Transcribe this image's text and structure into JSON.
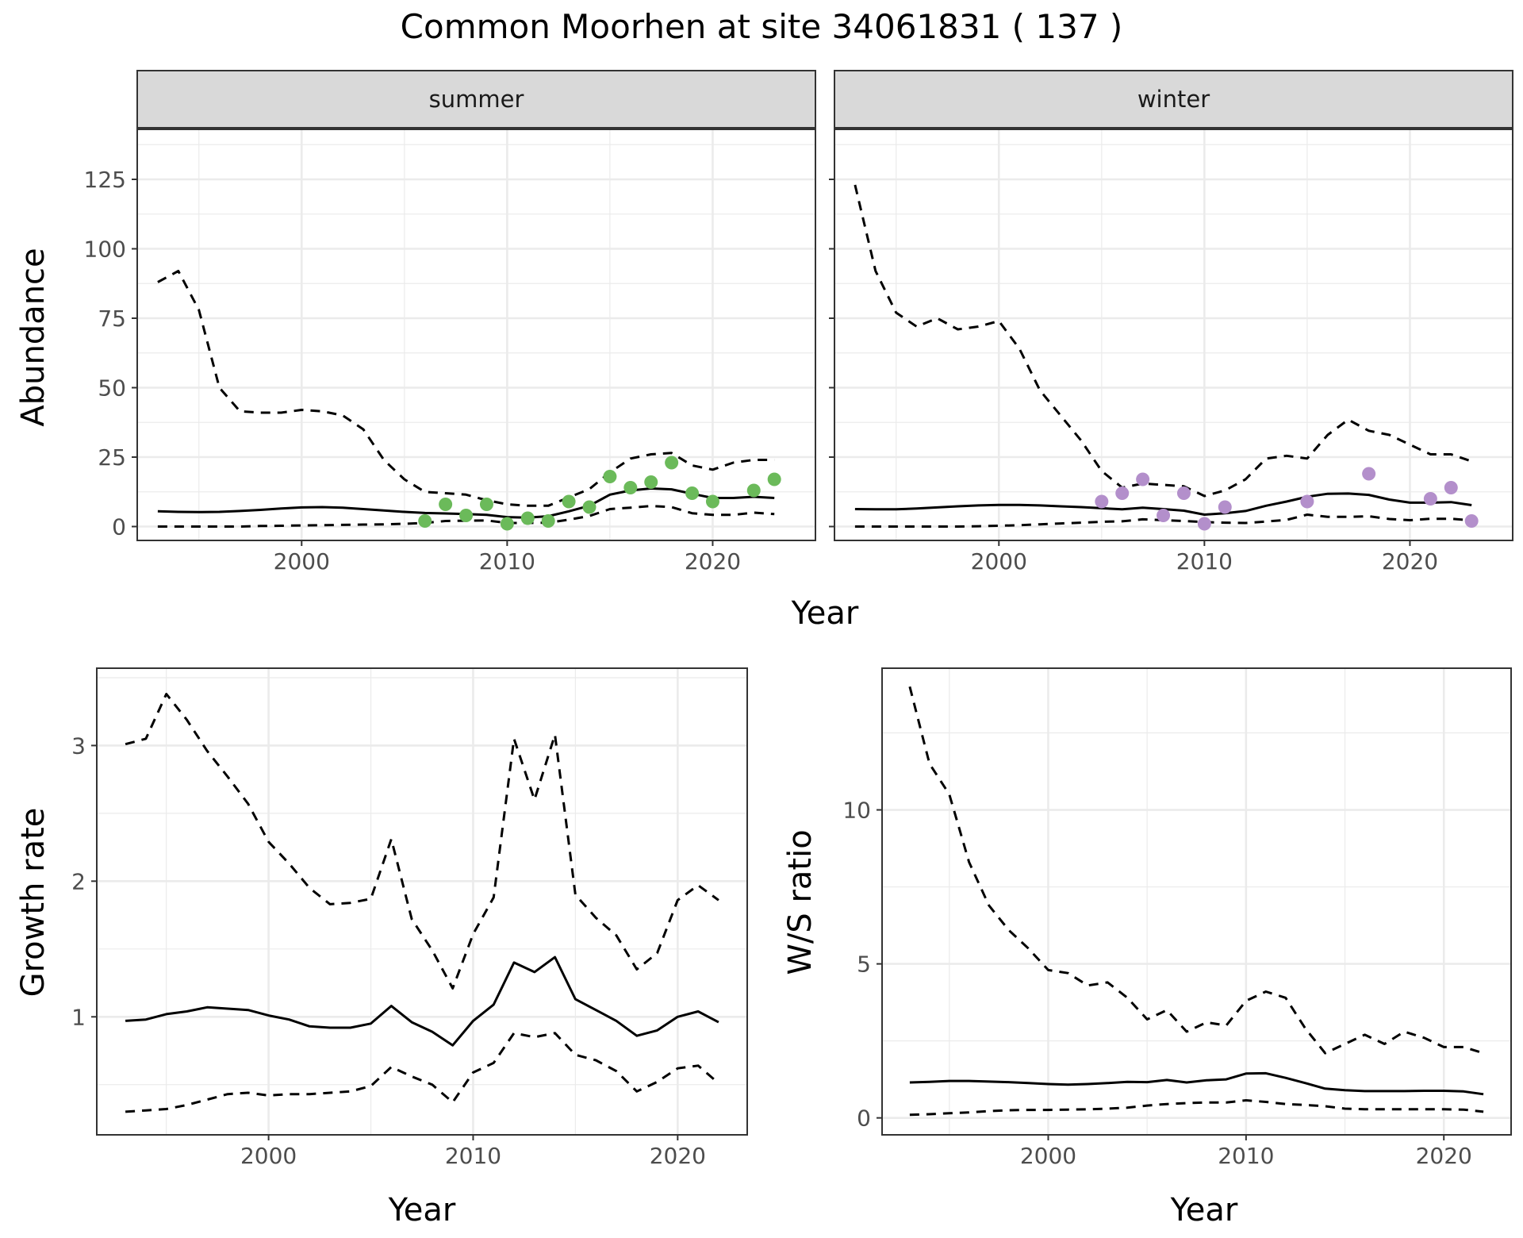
{
  "title": "Common Moorhen at site 34061831 ( 137 )",
  "colors": {
    "summer_points": "#6bba5a",
    "winter_points": "#b38fcb",
    "line": "#000000",
    "strip_fill": "#d9d9d9",
    "grid": "#ebebeb"
  },
  "chart_data": [
    {
      "type": "line",
      "panel": "summer",
      "strip_label": "summer",
      "xlabel": "Year",
      "ylabel": "Abundance",
      "xlim": [
        1992,
        2025
      ],
      "ylim": [
        -5,
        143
      ],
      "x_ticks": [
        2000,
        2010,
        2020
      ],
      "y_ticks": [
        0,
        25,
        50,
        75,
        100,
        125
      ],
      "grid": true,
      "series": [
        {
          "style": "solid",
          "x": [
            1993,
            1994,
            1995,
            1996,
            1997,
            1998,
            1999,
            2000,
            2001,
            2002,
            2003,
            2004,
            2005,
            2006,
            2007,
            2008,
            2009,
            2010,
            2011,
            2012,
            2013,
            2014,
            2015,
            2016,
            2017,
            2018,
            2019,
            2020,
            2021,
            2022,
            2023
          ],
          "y": [
            5.5,
            5.3,
            5.2,
            5.3,
            5.6,
            6.0,
            6.5,
            6.9,
            7.0,
            6.8,
            6.3,
            5.8,
            5.3,
            4.9,
            4.7,
            4.5,
            4.2,
            3.4,
            3.2,
            3.7,
            5.5,
            7.5,
            11.5,
            13.0,
            13.7,
            13.4,
            11.8,
            10.3,
            10.3,
            10.7,
            10.3
          ]
        },
        {
          "style": "dashed",
          "x": [
            1993,
            1994,
            1995,
            1996,
            1997,
            1998,
            1999,
            2000,
            2001,
            2002,
            2003,
            2004,
            2005,
            2006,
            2007,
            2008,
            2009,
            2010,
            2011,
            2012,
            2013,
            2014,
            2015,
            2016,
            2017,
            2018,
            2019,
            2020,
            2021,
            2022,
            2023
          ],
          "y": [
            88,
            92,
            78,
            50,
            41.5,
            41,
            41,
            42,
            41.5,
            40,
            35,
            24,
            17,
            12.5,
            12,
            11.5,
            9.5,
            8,
            7.5,
            7.5,
            10.5,
            13.5,
            19.5,
            24.5,
            26,
            26.5,
            22,
            20.5,
            23,
            24,
            24
          ]
        },
        {
          "style": "dashed",
          "x": [
            1993,
            1994,
            1995,
            1996,
            1997,
            1998,
            1999,
            2000,
            2001,
            2002,
            2003,
            2004,
            2005,
            2006,
            2007,
            2008,
            2009,
            2010,
            2011,
            2012,
            2013,
            2014,
            2015,
            2016,
            2017,
            2018,
            2019,
            2020,
            2021,
            2022,
            2023
          ],
          "y": [
            0,
            0,
            0,
            0,
            0,
            0.2,
            0.3,
            0.4,
            0.5,
            0.6,
            0.7,
            0.8,
            1.0,
            1.3,
            2.0,
            2.1,
            2.2,
            1.3,
            1.3,
            1.4,
            2.5,
            3.8,
            6.3,
            6.8,
            7.4,
            7.0,
            4.8,
            4.2,
            4.2,
            5.0,
            4.5
          ]
        }
      ],
      "points": {
        "x": [
          2006,
          2007,
          2008,
          2009,
          2010,
          2011,
          2012,
          2013,
          2014,
          2015,
          2016,
          2017,
          2018,
          2019,
          2020,
          2022,
          2023
        ],
        "y": [
          2,
          8,
          4,
          8,
          1,
          3,
          2,
          9,
          7,
          18,
          14,
          16,
          23,
          12,
          9,
          13,
          17
        ]
      }
    },
    {
      "type": "line",
      "panel": "winter",
      "strip_label": "winter",
      "xlabel": "Year",
      "ylabel": "Abundance",
      "xlim": [
        1992,
        2025
      ],
      "ylim": [
        -5,
        143
      ],
      "x_ticks": [
        2000,
        2010,
        2020
      ],
      "y_ticks": [
        0,
        25,
        50,
        75,
        100,
        125
      ],
      "grid": true,
      "series": [
        {
          "style": "solid",
          "x": [
            1993,
            1994,
            1995,
            1996,
            1997,
            1998,
            1999,
            2000,
            2001,
            2002,
            2003,
            2004,
            2005,
            2006,
            2007,
            2008,
            2009,
            2010,
            2011,
            2012,
            2013,
            2014,
            2015,
            2016,
            2017,
            2018,
            2019,
            2020,
            2021,
            2022,
            2023
          ],
          "y": [
            6.3,
            6.2,
            6.2,
            6.5,
            6.9,
            7.3,
            7.6,
            7.8,
            7.8,
            7.6,
            7.3,
            7.0,
            6.6,
            6.2,
            6.8,
            6.3,
            5.7,
            4.3,
            4.8,
            5.6,
            7.5,
            9.0,
            10.7,
            11.8,
            11.9,
            11.4,
            9.7,
            8.6,
            8.6,
            8.8,
            7.7
          ]
        },
        {
          "style": "dashed",
          "x": [
            1993,
            1994,
            1995,
            1996,
            1997,
            1998,
            1999,
            2000,
            2001,
            2002,
            2003,
            2004,
            2005,
            2006,
            2007,
            2008,
            2009,
            2010,
            2011,
            2012,
            2013,
            2014,
            2015,
            2016,
            2017,
            2018,
            2019,
            2020,
            2021,
            2022,
            2023
          ],
          "y": [
            123,
            92,
            77,
            72,
            75,
            71,
            72,
            74,
            64,
            49,
            40,
            31,
            20,
            14,
            15.5,
            15,
            14.5,
            11,
            13,
            17,
            24.5,
            25.5,
            24.5,
            33,
            38.5,
            34.5,
            33,
            29.5,
            26,
            26,
            23.5
          ]
        },
        {
          "style": "dashed",
          "x": [
            1993,
            1994,
            1995,
            1996,
            1997,
            1998,
            1999,
            2000,
            2001,
            2002,
            2003,
            2004,
            2005,
            2006,
            2007,
            2008,
            2009,
            2010,
            2011,
            2012,
            2013,
            2014,
            2015,
            2016,
            2017,
            2018,
            2019,
            2020,
            2021,
            2022,
            2023
          ],
          "y": [
            0,
            0,
            0,
            0,
            0,
            0,
            0.1,
            0.3,
            0.5,
            0.8,
            1.1,
            1.4,
            1.7,
            1.9,
            2.6,
            2.3,
            2.0,
            1.6,
            1.4,
            1.3,
            1.8,
            2.4,
            4.3,
            3.5,
            3.5,
            3.7,
            2.7,
            2.3,
            2.8,
            2.8,
            2.2
          ]
        }
      ],
      "points": {
        "x": [
          2005,
          2006,
          2007,
          2008,
          2009,
          2010,
          2011,
          2015,
          2018,
          2021,
          2022,
          2023
        ],
        "y": [
          9,
          12,
          17,
          4,
          12,
          1,
          7,
          9,
          19,
          10,
          14,
          2
        ]
      }
    },
    {
      "type": "line",
      "panel": "growth",
      "xlabel": "Year",
      "ylabel": "Growth rate",
      "xlim": [
        1991.6,
        2023.4
      ],
      "ylim": [
        0.13,
        3.57
      ],
      "x_ticks": [
        2000,
        2010,
        2020
      ],
      "y_ticks": [
        1,
        2,
        3
      ],
      "grid": true,
      "series": [
        {
          "style": "solid",
          "x": [
            1993,
            1994,
            1995,
            1996,
            1997,
            1998,
            1999,
            2000,
            2001,
            2002,
            2003,
            2004,
            2005,
            2006,
            2007,
            2008,
            2009,
            2010,
            2011,
            2012,
            2013,
            2014,
            2015,
            2016,
            2017,
            2018,
            2019,
            2020,
            2021,
            2022
          ],
          "y": [
            0.97,
            0.98,
            1.02,
            1.04,
            1.07,
            1.06,
            1.05,
            1.01,
            0.98,
            0.93,
            0.92,
            0.92,
            0.95,
            1.08,
            0.96,
            0.89,
            0.79,
            0.97,
            1.09,
            1.4,
            1.33,
            1.44,
            1.13,
            1.05,
            0.97,
            0.86,
            0.9,
            1.0,
            1.04,
            0.96
          ]
        },
        {
          "style": "dashed",
          "x": [
            1993,
            1994,
            1995,
            1996,
            1997,
            1998,
            1999,
            2000,
            2001,
            2002,
            2003,
            2004,
            2005,
            2006,
            2007,
            2008,
            2009,
            2010,
            2011,
            2012,
            2013,
            2014,
            2015,
            2016,
            2017,
            2018,
            2019,
            2020,
            2021,
            2022
          ],
          "y": [
            3.01,
            3.05,
            3.38,
            3.19,
            2.96,
            2.77,
            2.57,
            2.29,
            2.13,
            1.95,
            1.83,
            1.84,
            1.87,
            2.31,
            1.72,
            1.49,
            1.21,
            1.61,
            1.88,
            3.05,
            2.6,
            3.08,
            1.9,
            1.73,
            1.6,
            1.35,
            1.47,
            1.86,
            1.97,
            1.86
          ]
        },
        {
          "style": "dashed",
          "x": [
            1993,
            1994,
            1995,
            1996,
            1997,
            1998,
            1999,
            2000,
            2001,
            2002,
            2003,
            2004,
            2005,
            2006,
            2007,
            2008,
            2009,
            2010,
            2011,
            2012,
            2013,
            2014,
            2015,
            2016,
            2017,
            2018,
            2019,
            2020,
            2021,
            2022
          ],
          "y": [
            0.3,
            0.31,
            0.32,
            0.35,
            0.39,
            0.43,
            0.44,
            0.42,
            0.43,
            0.43,
            0.44,
            0.45,
            0.49,
            0.63,
            0.56,
            0.5,
            0.37,
            0.59,
            0.66,
            0.88,
            0.85,
            0.88,
            0.72,
            0.68,
            0.6,
            0.45,
            0.52,
            0.62,
            0.64,
            0.51
          ]
        }
      ]
    },
    {
      "type": "line",
      "panel": "ratio",
      "xlabel": "Year",
      "ylabel": "W/S ratio",
      "xlim": [
        1991.6,
        2023.4
      ],
      "ylim": [
        -0.55,
        14.6
      ],
      "x_ticks": [
        2000,
        2010,
        2020
      ],
      "y_ticks": [
        0,
        5,
        10
      ],
      "grid": true,
      "series": [
        {
          "style": "solid",
          "x": [
            1993,
            1994,
            1995,
            1996,
            1997,
            1998,
            1999,
            2000,
            2001,
            2002,
            2003,
            2004,
            2005,
            2006,
            2007,
            2008,
            2009,
            2010,
            2011,
            2012,
            2013,
            2014,
            2015,
            2016,
            2017,
            2018,
            2019,
            2020,
            2021,
            2022
          ],
          "y": [
            1.15,
            1.17,
            1.2,
            1.2,
            1.18,
            1.16,
            1.13,
            1.1,
            1.08,
            1.1,
            1.13,
            1.17,
            1.16,
            1.23,
            1.15,
            1.22,
            1.25,
            1.44,
            1.45,
            1.3,
            1.13,
            0.95,
            0.9,
            0.87,
            0.87,
            0.87,
            0.88,
            0.88,
            0.86,
            0.77
          ]
        },
        {
          "style": "dashed",
          "x": [
            1993,
            1994,
            1995,
            1996,
            1997,
            1998,
            1999,
            2000,
            2001,
            2002,
            2003,
            2004,
            2005,
            2006,
            2007,
            2008,
            2009,
            2010,
            2011,
            2012,
            2013,
            2014,
            2015,
            2016,
            2017,
            2018,
            2019,
            2020,
            2021,
            2022
          ],
          "y": [
            14.0,
            11.5,
            10.5,
            8.3,
            6.9,
            6.1,
            5.5,
            4.8,
            4.7,
            4.3,
            4.4,
            3.9,
            3.2,
            3.5,
            2.8,
            3.1,
            3.0,
            3.8,
            4.1,
            3.9,
            2.9,
            2.1,
            2.4,
            2.7,
            2.4,
            2.8,
            2.6,
            2.3,
            2.3,
            2.1
          ]
        },
        {
          "style": "dashed",
          "x": [
            1993,
            1994,
            1995,
            1996,
            1997,
            1998,
            1999,
            2000,
            2001,
            2002,
            2003,
            2004,
            2005,
            2006,
            2007,
            2008,
            2009,
            2010,
            2011,
            2012,
            2013,
            2014,
            2015,
            2016,
            2017,
            2018,
            2019,
            2020,
            2021,
            2022
          ],
          "y": [
            0.1,
            0.12,
            0.15,
            0.18,
            0.22,
            0.25,
            0.26,
            0.26,
            0.27,
            0.28,
            0.3,
            0.33,
            0.4,
            0.45,
            0.48,
            0.5,
            0.5,
            0.57,
            0.52,
            0.45,
            0.42,
            0.38,
            0.3,
            0.28,
            0.28,
            0.28,
            0.28,
            0.28,
            0.27,
            0.2
          ]
        }
      ]
    }
  ]
}
